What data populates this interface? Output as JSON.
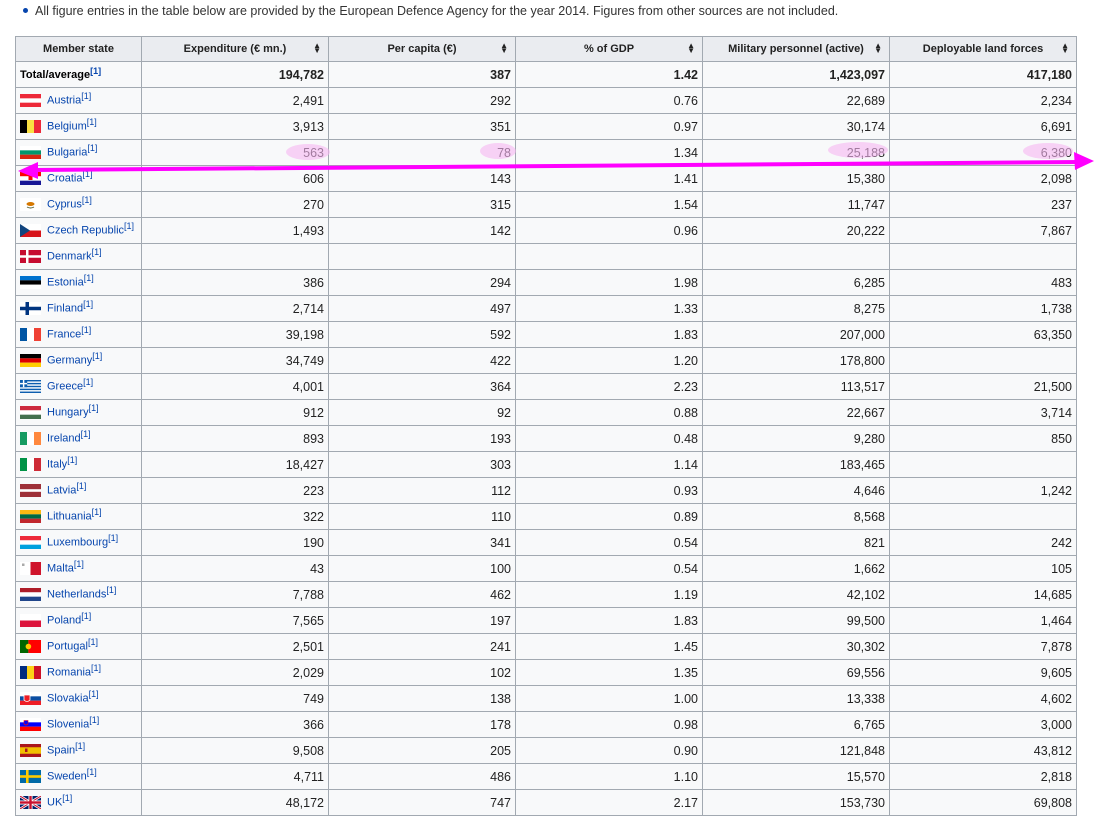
{
  "note": "All figure entries in the table below are provided by the European Defence Agency for the year 2014. Figures from other sources are not included.",
  "columns": [
    "Member state",
    "Expenditure (€ mn.)",
    "Per capita (€)",
    "% of GDP",
    "Military personnel (active)",
    "Deployable land forces"
  ],
  "sort_icon": "⬥",
  "total": {
    "label": "Total/average",
    "ref": "[1]",
    "values": [
      "194,782",
      "387",
      "1.42",
      "1,423,097",
      "417,180"
    ]
  },
  "rows": [
    {
      "country": "Austria",
      "ref": "[1]",
      "flag": "austria-flag",
      "values": [
        "2,491",
        "292",
        "0.76",
        "22,689",
        "2,234"
      ]
    },
    {
      "country": "Belgium",
      "ref": "[1]",
      "flag": "belgium-flag",
      "values": [
        "3,913",
        "351",
        "0.97",
        "30,174",
        "6,691"
      ]
    },
    {
      "country": "Bulgaria",
      "ref": "[1]",
      "flag": "bulgaria-flag",
      "values": [
        "563",
        "78",
        "1.34",
        "25,188",
        "6,380"
      ]
    },
    {
      "country": "Croatia",
      "ref": "[1]",
      "flag": "croatia-flag",
      "values": [
        "606",
        "143",
        "1.41",
        "15,380",
        "2,098"
      ]
    },
    {
      "country": "Cyprus",
      "ref": "[1]",
      "flag": "cyprus-flag",
      "values": [
        "270",
        "315",
        "1.54",
        "11,747",
        "237"
      ]
    },
    {
      "country": "Czech Republic",
      "ref": "[1]",
      "flag": "czech-flag",
      "values": [
        "1,493",
        "142",
        "0.96",
        "20,222",
        "7,867"
      ]
    },
    {
      "country": "Denmark",
      "ref": "[1]",
      "flag": "denmark-flag",
      "values": [
        "",
        "",
        "",
        "",
        ""
      ]
    },
    {
      "country": "Estonia",
      "ref": "[1]",
      "flag": "estonia-flag",
      "values": [
        "386",
        "294",
        "1.98",
        "6,285",
        "483"
      ]
    },
    {
      "country": "Finland",
      "ref": "[1]",
      "flag": "finland-flag",
      "values": [
        "2,714",
        "497",
        "1.33",
        "8,275",
        "1,738"
      ]
    },
    {
      "country": "France",
      "ref": "[1]",
      "flag": "france-flag",
      "values": [
        "39,198",
        "592",
        "1.83",
        "207,000",
        "63,350"
      ]
    },
    {
      "country": "Germany",
      "ref": "[1]",
      "flag": "germany-flag",
      "values": [
        "34,749",
        "422",
        "1.20",
        "178,800",
        ""
      ]
    },
    {
      "country": "Greece",
      "ref": "[1]",
      "flag": "greece-flag",
      "values": [
        "4,001",
        "364",
        "2.23",
        "113,517",
        "21,500"
      ]
    },
    {
      "country": "Hungary",
      "ref": "[1]",
      "flag": "hungary-flag",
      "values": [
        "912",
        "92",
        "0.88",
        "22,667",
        "3,714"
      ]
    },
    {
      "country": "Ireland",
      "ref": "[1]",
      "flag": "ireland-flag",
      "values": [
        "893",
        "193",
        "0.48",
        "9,280",
        "850"
      ]
    },
    {
      "country": "Italy",
      "ref": "[1]",
      "flag": "italy-flag",
      "values": [
        "18,427",
        "303",
        "1.14",
        "183,465",
        ""
      ]
    },
    {
      "country": "Latvia",
      "ref": "[1]",
      "flag": "latvia-flag",
      "values": [
        "223",
        "112",
        "0.93",
        "4,646",
        "1,242"
      ]
    },
    {
      "country": "Lithuania",
      "ref": "[1]",
      "flag": "lithuania-flag",
      "values": [
        "322",
        "110",
        "0.89",
        "8,568",
        ""
      ]
    },
    {
      "country": "Luxembourg",
      "ref": "[1]",
      "flag": "luxembourg-flag",
      "values": [
        "190",
        "341",
        "0.54",
        "821",
        "242"
      ]
    },
    {
      "country": "Malta",
      "ref": "[1]",
      "flag": "malta-flag",
      "values": [
        "43",
        "100",
        "0.54",
        "1,662",
        "105"
      ]
    },
    {
      "country": "Netherlands",
      "ref": "[1]",
      "flag": "netherlands-flag",
      "values": [
        "7,788",
        "462",
        "1.19",
        "42,102",
        "14,685"
      ]
    },
    {
      "country": "Poland",
      "ref": "[1]",
      "flag": "poland-flag",
      "values": [
        "7,565",
        "197",
        "1.83",
        "99,500",
        "1,464"
      ]
    },
    {
      "country": "Portugal",
      "ref": "[1]",
      "flag": "portugal-flag",
      "values": [
        "2,501",
        "241",
        "1.45",
        "30,302",
        "7,878"
      ]
    },
    {
      "country": "Romania",
      "ref": "[1]",
      "flag": "romania-flag",
      "values": [
        "2,029",
        "102",
        "1.35",
        "69,556",
        "9,605"
      ]
    },
    {
      "country": "Slovakia",
      "ref": "[1]",
      "flag": "slovakia-flag",
      "values": [
        "749",
        "138",
        "1.00",
        "13,338",
        "4,602"
      ]
    },
    {
      "country": "Slovenia",
      "ref": "[1]",
      "flag": "slovenia-flag",
      "values": [
        "366",
        "178",
        "0.98",
        "6,765",
        "3,000"
      ]
    },
    {
      "country": "Spain",
      "ref": "[1]",
      "flag": "spain-flag",
      "values": [
        "9,508",
        "205",
        "0.90",
        "121,848",
        "43,812"
      ]
    },
    {
      "country": "Sweden",
      "ref": "[1]",
      "flag": "sweden-flag",
      "values": [
        "4,711",
        "486",
        "1.10",
        "15,570",
        "2,818"
      ]
    },
    {
      "country": "UK",
      "ref": "[1]",
      "flag": "uk-flag",
      "values": [
        "48,172",
        "747",
        "2.17",
        "153,730",
        "69,808"
      ]
    }
  ],
  "annotation": {
    "color": "#ff00ff",
    "highlight_color": "#f7b6f2",
    "row": "Bulgaria"
  }
}
